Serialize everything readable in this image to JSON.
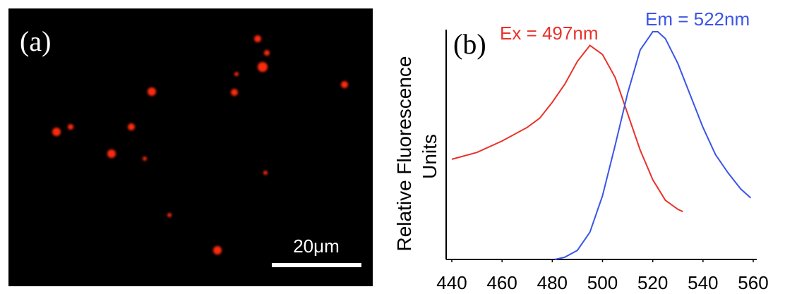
{
  "image_panel": {
    "label": "(a)",
    "scale_bar": "20μm"
  },
  "chart_data": {
    "type": "line",
    "panel_label": "(b)",
    "y_label": [
      "Relative Fluorescence",
      "Units"
    ],
    "xlim": [
      440,
      560
    ],
    "xticks": [
      440,
      460,
      480,
      500,
      520,
      540,
      560
    ],
    "ylim": [
      0,
      100
    ],
    "series": [
      {
        "name": "Ex = 497nm",
        "color": "#e8322a",
        "x": [
          440,
          450,
          460,
          470,
          475,
          480,
          485,
          490,
          495,
          500,
          505,
          510,
          515,
          520,
          525,
          530,
          532
        ],
        "values": [
          44,
          47,
          52,
          58,
          62,
          69,
          77,
          87,
          94,
          90,
          80,
          64,
          48,
          35,
          26,
          22,
          21
        ]
      },
      {
        "name": "Em = 522nm",
        "color": "#3a55e8",
        "x": [
          481,
          485,
          490,
          495,
          500,
          505,
          510,
          515,
          520,
          522,
          525,
          530,
          535,
          540,
          545,
          550,
          555,
          559
        ],
        "values": [
          0,
          1,
          4,
          12,
          28,
          50,
          73,
          92,
          100,
          100,
          97,
          86,
          72,
          58,
          46,
          38,
          31,
          27
        ]
      }
    ]
  }
}
